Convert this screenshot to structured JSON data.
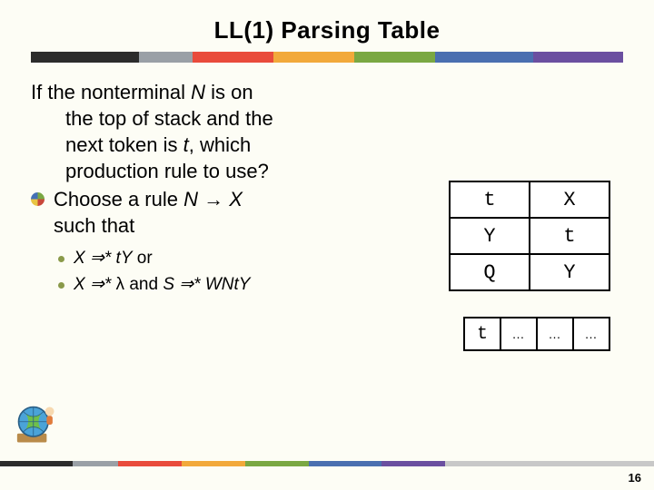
{
  "title": "LL(1) Parsing Table",
  "title_bar_colors": [
    "#2c2c2c",
    "#9aa0a6",
    "#e94b3c",
    "#f2a93b",
    "#7aa843",
    "#4a6fb0",
    "#6b4fa0"
  ],
  "title_bar_widths": [
    120,
    60,
    90,
    90,
    90,
    110,
    100
  ],
  "para1_lines": [
    "If the nonterminal ",
    "N",
    " is on",
    "the top of stack and the",
    "next token is ",
    "t",
    ", which",
    "production rule to use?"
  ],
  "bullet1": {
    "pre": "Choose a rule ",
    "mid": "N → X",
    "post": "",
    "line2": "such that"
  },
  "sub1": {
    "pre": "X ⇒* ",
    "mid": "t",
    "post": "Y",
    "tail": "    or"
  },
  "sub2": {
    "pre": "X ⇒* ",
    "lam": "λ",
    "mid": "  and  ",
    "post": "S ⇒* WNt",
    "last": "Y"
  },
  "stack": [
    [
      "t",
      "X"
    ],
    [
      "Y",
      "t"
    ],
    [
      "Q",
      "Y"
    ]
  ],
  "input": [
    "t",
    "…",
    "…",
    "…"
  ],
  "footer_colors": [
    "#2c2c2c",
    "#9aa0a6",
    "#e94b3c",
    "#f2a93b",
    "#7aa843",
    "#4a6fb0",
    "#6b4fa0",
    "#c8c8c8"
  ],
  "footer_widths": [
    80,
    50,
    70,
    70,
    70,
    80,
    70,
    230
  ],
  "page_number": "16"
}
